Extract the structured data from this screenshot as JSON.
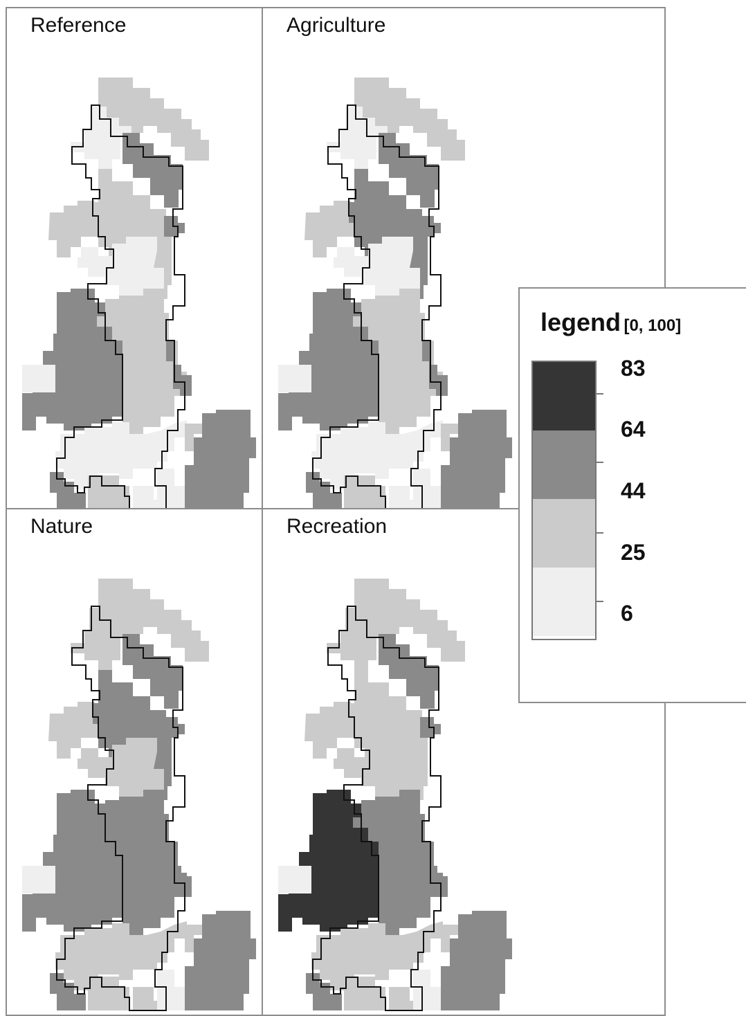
{
  "colors": {
    "c1": "#efefef",
    "c2": "#cbcbcb",
    "c3": "#8a8a8a",
    "c4": "#353535",
    "panel_border": "#8c8c8c"
  },
  "panels": [
    {
      "title": "Reference"
    },
    {
      "title": "Agriculture"
    },
    {
      "title": "Nature"
    },
    {
      "title": "Recreation"
    }
  ],
  "legend": {
    "title": "legend",
    "range": "[0, 100]",
    "labels": [
      "83",
      "64",
      "44",
      "25",
      "6"
    ],
    "classes": [
      "c4",
      "c3",
      "c2",
      "c1"
    ]
  }
}
